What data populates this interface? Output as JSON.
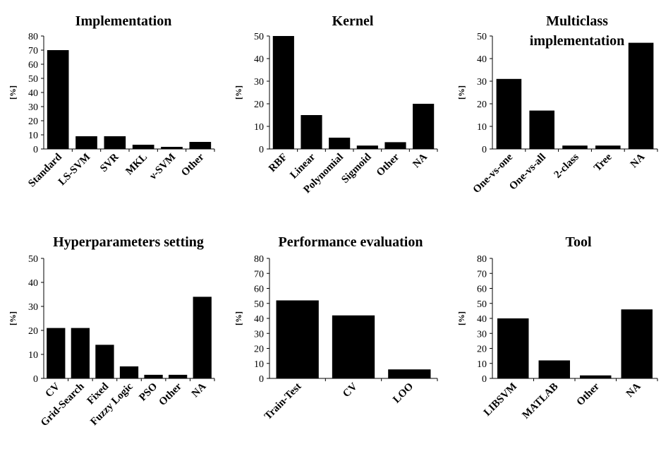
{
  "chart_data": [
    {
      "type": "bar",
      "title": "Implementation",
      "ylabel": "[%]",
      "ylim": [
        0,
        80
      ],
      "yticks": [
        0,
        10,
        20,
        30,
        40,
        50,
        60,
        70,
        80
      ],
      "categories": [
        "Standard",
        "LS-SVM",
        "SVR",
        "MKL",
        "ν-SVM",
        "Other"
      ],
      "values": [
        70,
        9,
        9,
        3,
        1.5,
        5
      ]
    },
    {
      "type": "bar",
      "title": "Kernel",
      "ylabel": "[%]",
      "ylim": [
        0,
        50
      ],
      "yticks": [
        0,
        10,
        20,
        30,
        40,
        50
      ],
      "categories": [
        "RBF",
        "Linear",
        "Polynomial",
        "Sigmoid",
        "Other",
        "NA"
      ],
      "values": [
        50,
        15,
        5,
        1.5,
        3,
        20
      ]
    },
    {
      "type": "bar",
      "title": "Multiclass implementation",
      "ylabel": "[%]",
      "ylim": [
        0,
        50
      ],
      "yticks": [
        0,
        10,
        20,
        30,
        40,
        50
      ],
      "categories": [
        "One-vs-one",
        "One-vs-all",
        "2-class",
        "Tree",
        "NA"
      ],
      "values": [
        31,
        17,
        1.5,
        1.5,
        47
      ]
    },
    {
      "type": "bar",
      "title": "Hyperparameters setting",
      "ylabel": "[%]",
      "ylim": [
        0,
        50
      ],
      "yticks": [
        0,
        10,
        20,
        30,
        40,
        50
      ],
      "categories": [
        "CV",
        "Grid-Search",
        "Fixed",
        "Fuzzy Logic",
        "PSO",
        "Other",
        "NA"
      ],
      "values": [
        21,
        21,
        14,
        5,
        1.5,
        1.5,
        34
      ]
    },
    {
      "type": "bar",
      "title": "Performance evaluation",
      "ylabel": "[%]",
      "ylim": [
        0,
        80
      ],
      "yticks": [
        0,
        10,
        20,
        30,
        40,
        50,
        60,
        70,
        80
      ],
      "categories": [
        "Train-Test",
        "CV",
        "LOO"
      ],
      "values": [
        52,
        42,
        6
      ]
    },
    {
      "type": "bar",
      "title": "Tool",
      "ylabel": "[%]",
      "ylim": [
        0,
        80
      ],
      "yticks": [
        0,
        10,
        20,
        30,
        40,
        50,
        60,
        70,
        80
      ],
      "categories": [
        "LIBSVM",
        "MATLAB",
        "Other",
        "NA"
      ],
      "values": [
        40,
        12,
        2,
        46
      ]
    }
  ]
}
